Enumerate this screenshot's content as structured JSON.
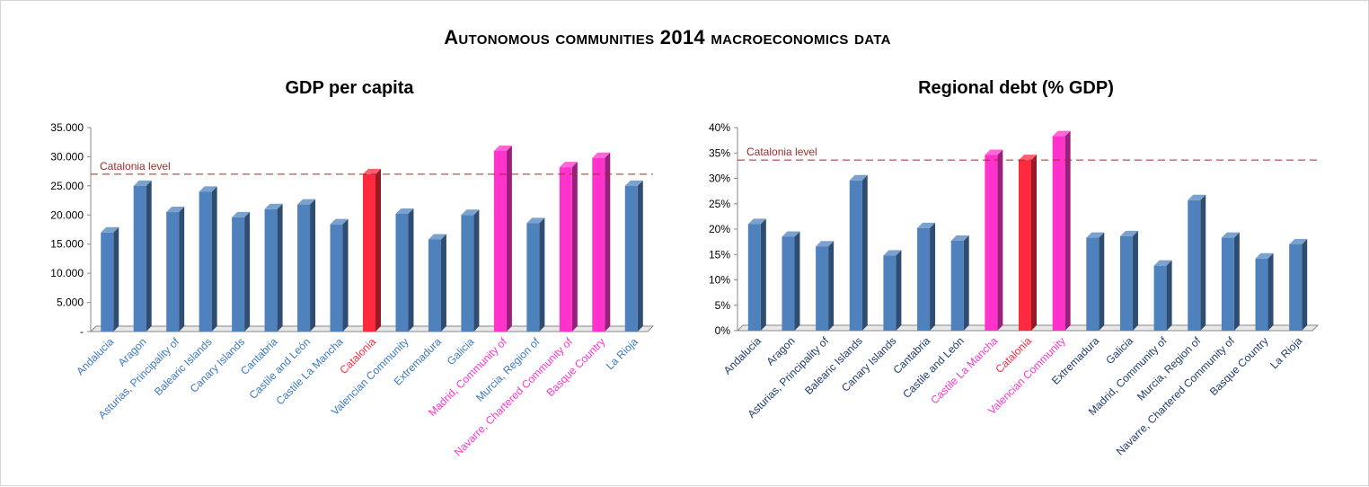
{
  "page_title": "Autonomous communities 2014 macroeconomics data",
  "colors": {
    "blue": "#4f81bd",
    "red": "#ff2a3d",
    "magenta": "#ff33cc",
    "label_blue": "#3a78c2",
    "label_navy": "#1f3a6b",
    "reference": "#a52a2a"
  },
  "chart_data": [
    {
      "type": "bar",
      "title": "GDP per capita",
      "ylim": [
        0,
        35000
      ],
      "yticks": [
        "-",
        "5.000",
        "10.000",
        "15.000",
        "20.000",
        "25.000",
        "30.000",
        "35.000"
      ],
      "reference_line": {
        "label": "Catalonia level",
        "value": 27000
      },
      "categories": [
        "Andalucia",
        "Aragon",
        "Asturias, Principality of",
        "Balearic Islands",
        "Canary Islands",
        "Cantabria",
        "Castile and León",
        "Castile La Mancha",
        "Catalonia",
        "Valencian Community",
        "Extremadura",
        "Galicia",
        "Madrid, Community of",
        "Murcia, Region of",
        "Navarre, Chartered Community of",
        "Basque Country",
        "La Rioja"
      ],
      "values": [
        17000,
        25000,
        20500,
        24000,
        19600,
        21000,
        21800,
        18400,
        27000,
        20200,
        15800,
        20000,
        31000,
        18600,
        28200,
        29800,
        25000
      ],
      "highlight": [
        "blue",
        "blue",
        "blue",
        "blue",
        "blue",
        "blue",
        "blue",
        "blue",
        "red",
        "blue",
        "blue",
        "blue",
        "magenta",
        "blue",
        "magenta",
        "magenta",
        "blue"
      ]
    },
    {
      "type": "bar",
      "title": "Regional debt (% GDP)",
      "ylim": [
        0,
        40
      ],
      "yticks": [
        "0%",
        "5%",
        "10%",
        "15%",
        "20%",
        "25%",
        "30%",
        "35%",
        "40%"
      ],
      "reference_line": {
        "label": "Catalonia level",
        "value": 33.6
      },
      "categories": [
        "Andalucia",
        "Aragon",
        "Asturias, Principality of",
        "Balearic Islands",
        "Canary Islands",
        "Cantabria",
        "Castile and León",
        "Castile La Mancha",
        "Catalonia",
        "Valencian Community",
        "Extremadura",
        "Galicia",
        "Madrid, Community of",
        "Murcia, Region of",
        "Navarre, Chartered Community of",
        "Basque Country",
        "La Rioja"
      ],
      "values": [
        21,
        18.5,
        16.6,
        29.6,
        14.8,
        20.2,
        17.7,
        34.6,
        33.6,
        38.3,
        18.3,
        18.6,
        12.8,
        25.7,
        18.3,
        14.2,
        17.0
      ],
      "highlight": [
        "blue",
        "blue",
        "blue",
        "blue",
        "blue",
        "blue",
        "blue",
        "magenta",
        "red",
        "magenta",
        "blue",
        "blue",
        "blue",
        "blue",
        "blue",
        "blue",
        "blue"
      ]
    }
  ]
}
